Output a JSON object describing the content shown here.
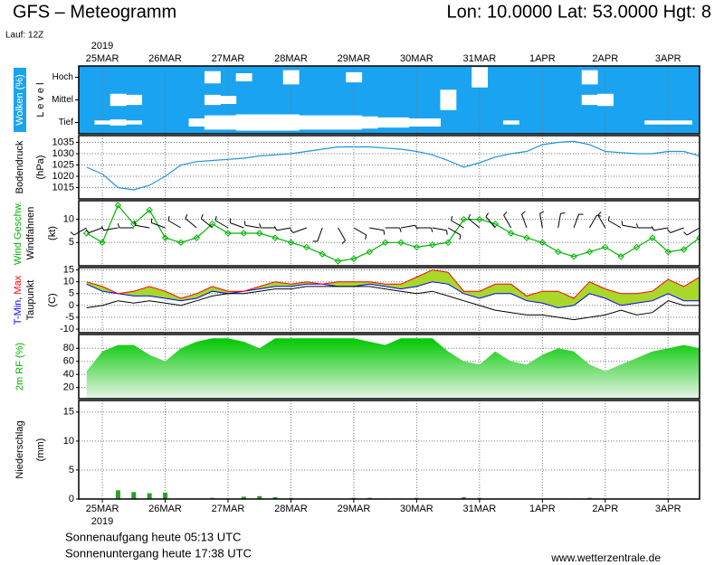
{
  "chart_data": {
    "type": "meteogram",
    "title": "GFS – Meteogramm",
    "subtitle": "Lon: 10.0000 Lat: 53.0000 Hgt: 8",
    "run": "Lauf: 12Z",
    "year": "2019",
    "footer": [
      "Sonnenaufgang heute 05:13 UTC",
      "Sonnenuntergang heute 17:38 UTC"
    ],
    "source": "www.wetterzentrale.de",
    "x": [
      -6,
      0,
      6,
      12,
      18,
      24,
      30,
      36,
      42,
      48,
      54,
      60,
      66,
      72,
      78,
      84,
      90,
      96,
      102,
      108,
      114,
      120,
      126,
      132,
      138,
      144,
      150,
      156,
      162,
      168,
      174,
      180,
      186,
      192,
      198,
      204,
      210,
      216,
      222,
      228
    ],
    "xlim": [
      -9,
      228
    ],
    "xticks": [
      {
        "value": 0,
        "label": "25MAR"
      },
      {
        "value": 24,
        "label": "26MAR"
      },
      {
        "value": 48,
        "label": "27MAR"
      },
      {
        "value": 72,
        "label": "28MAR"
      },
      {
        "value": 96,
        "label": "29MAR"
      },
      {
        "value": 120,
        "label": "30MAR"
      },
      {
        "value": 144,
        "label": "31MAR"
      },
      {
        "value": 168,
        "label": "1APR"
      },
      {
        "value": 192,
        "label": "2APR"
      },
      {
        "value": 216,
        "label": "3APR"
      }
    ],
    "panels": [
      {
        "type": "clouds",
        "color": "#1aa3f0",
        "ylabel": [
          [
            {
              "text": "Wolken (%)",
              "color": "#ffffff"
            }
          ],
          [
            {
              "text": "L e v e l"
            }
          ]
        ],
        "series": [
          {
            "name": "Hoch",
            "values": [
              100,
              100,
              100,
              100,
              100,
              100,
              100,
              100,
              40,
              100,
              60,
              100,
              100,
              30,
              100,
              100,
              100,
              50,
              100,
              100,
              100,
              100,
              100,
              100,
              100,
              0,
              100,
              100,
              100,
              100,
              100,
              100,
              30,
              100,
              100,
              100,
              100,
              100,
              100,
              100
            ]
          },
          {
            "name": "Mittel",
            "values": [
              100,
              100,
              40,
              50,
              100,
              100,
              100,
              100,
              50,
              60,
              100,
              100,
              100,
              100,
              100,
              100,
              100,
              100,
              100,
              100,
              100,
              100,
              100,
              0,
              100,
              100,
              100,
              100,
              100,
              100,
              100,
              100,
              50,
              40,
              100,
              100,
              100,
              100,
              100,
              100
            ]
          },
          {
            "name": "Tief",
            "values": [
              100,
              80,
              70,
              80,
              100,
              100,
              100,
              60,
              30,
              30,
              20,
              20,
              20,
              20,
              30,
              30,
              30,
              30,
              40,
              50,
              50,
              60,
              60,
              100,
              100,
              100,
              100,
              80,
              100,
              100,
              100,
              100,
              100,
              100,
              100,
              100,
              80,
              80,
              80,
              100
            ]
          }
        ]
      },
      {
        "type": "line",
        "ylabel": [
          [
            {
              "text": "Bodendruck"
            }
          ],
          [
            {
              "text": "(hPa)"
            }
          ]
        ],
        "ylim": [
          1010,
          1038
        ],
        "yticks": [
          1015,
          1020,
          1025,
          1030,
          1035
        ],
        "grid": true,
        "series": [
          {
            "color": "#1e96dc",
            "values": [
              1024,
              1021,
              1015,
              1014,
              1016,
              1020,
              1025,
              1026.5,
              1027,
              1027.5,
              1028,
              1029,
              1029.5,
              1030,
              1031,
              1032,
              1033,
              1033,
              1033,
              1032.5,
              1032,
              1031,
              1029.5,
              1027,
              1024,
              1026,
              1028.5,
              1030,
              1031,
              1034,
              1035,
              1035.5,
              1034,
              1031,
              1030.5,
              1030,
              1030,
              1031,
              1031,
              1029
            ]
          }
        ]
      },
      {
        "type": "wind",
        "ylabel": [
          [
            {
              "text": "Wind Geschw.",
              "color": "#00b400"
            }
          ],
          [
            {
              "text": "Windfahnen"
            }
          ],
          [
            {
              "text": "(kt)"
            }
          ]
        ],
        "ylim": [
          0,
          14
        ],
        "yticks": [
          5,
          10
        ],
        "grid": true,
        "series": [
          {
            "color": "#00b400",
            "values": [
              7,
              5,
              13,
              9,
              12,
              6,
              5,
              6,
              9,
              7,
              7,
              7,
              6,
              5,
              4,
              2.5,
              1,
              1.5,
              3,
              5,
              5,
              4,
              4.5,
              5,
              10,
              10,
              9,
              7,
              6,
              5,
              3,
              2,
              3,
              4,
              2,
              4,
              6,
              3,
              3.5,
              6
            ]
          }
        ],
        "direction": [
          240,
          250,
          260,
          270,
          280,
          290,
          300,
          310,
          310,
          300,
          290,
          280,
          270,
          260,
          250,
          200,
          150,
          120,
          100,
          90,
          80,
          90,
          100,
          120,
          300,
          310,
          320,
          330,
          340,
          350,
          10,
          20,
          30,
          330,
          300,
          280,
          270,
          260,
          250,
          240
        ]
      },
      {
        "type": "temperature",
        "ylabel": [
          [
            {
              "text": "T-Min",
              "color": "#0000ff"
            },
            {
              "text": ", "
            },
            {
              "text": "Max",
              "color": "#ff0000"
            }
          ],
          [
            {
              "text": "Taupunkt"
            }
          ],
          [
            {
              "text": "(C)"
            }
          ]
        ],
        "ylim": [
          -11.5,
          16
        ],
        "yticks": [
          -10,
          -5,
          0,
          5,
          10,
          15
        ],
        "grid": true,
        "fill_color": "#a8d82a",
        "series": [
          {
            "name": "T-Min",
            "color": "#0000ff",
            "values": [
              9,
              6,
              5,
              4,
              4,
              3,
              2,
              3,
              6,
              5,
              6,
              7,
              8,
              8,
              9,
              9,
              8,
              8,
              9,
              8,
              7,
              8,
              10,
              9,
              5,
              3,
              5,
              5,
              2,
              1,
              -1,
              0,
              5,
              3,
              0,
              1,
              2,
              5,
              2,
              2
            ]
          },
          {
            "name": "Max",
            "color": "#ff0000",
            "values": [
              10,
              8,
              5,
              6,
              8,
              6,
              3,
              5,
              8,
              6,
              6,
              8,
              10,
              9,
              10,
              9,
              10,
              10,
              10,
              9,
              9,
              12,
              15,
              14,
              6,
              6,
              9,
              9,
              4,
              6,
              6,
              3,
              10,
              7,
              5,
              5,
              6,
              11,
              8,
              12
            ]
          },
          {
            "name": "Taupunkt",
            "color": "#000000",
            "values": [
              -1,
              0,
              2,
              1,
              2,
              1,
              0,
              2,
              4,
              5,
              5,
              6,
              7,
              7,
              8,
              8,
              8,
              8,
              8,
              7,
              6,
              5,
              6,
              4,
              2,
              0,
              -2,
              -3,
              -4,
              -4,
              -5,
              -6,
              -5,
              -4,
              -2,
              -4,
              -3,
              2,
              0,
              0
            ]
          }
        ]
      },
      {
        "type": "area",
        "ylabel": [
          [
            {
              "text": "2m RF (%)",
              "color": "#00b400"
            }
          ]
        ],
        "ylim": [
          3,
          101
        ],
        "yticks": [
          20,
          40,
          60,
          80
        ],
        "grid": true,
        "colors": [
          "#00c800",
          "#e8f4e8"
        ],
        "series": [
          {
            "values": [
              45,
              75,
              85,
              85,
              70,
              60,
              80,
              90,
              95,
              95,
              90,
              80,
              95,
              95,
              95,
              95,
              95,
              95,
              90,
              85,
              95,
              95,
              95,
              75,
              60,
              55,
              75,
              60,
              55,
              70,
              80,
              75,
              55,
              45,
              55,
              65,
              75,
              80,
              85,
              80
            ]
          }
        ]
      },
      {
        "type": "bar",
        "ylabel": [
          [
            {
              "text": "Niederschlag"
            }
          ],
          [
            {
              "text": "(mm)"
            }
          ]
        ],
        "ylim": [
          0,
          17
        ],
        "yticks": [
          0,
          5,
          10,
          15
        ],
        "grid": true,
        "series": [
          {
            "color": "#2ca02c",
            "values": [
              0,
              0,
              1.5,
              1.2,
              1,
              1.1,
              0,
              0,
              0.2,
              0.1,
              0.4,
              0.5,
              0.3,
              0.2,
              0.1,
              0,
              0.1,
              0.2,
              0.2,
              0.1,
              0.1,
              0.2,
              0,
              0,
              0.3,
              0.2,
              0,
              0,
              0,
              0,
              0,
              0.1,
              0.2,
              0,
              0,
              0.1,
              0.1,
              0,
              0,
              0
            ]
          }
        ]
      }
    ]
  }
}
